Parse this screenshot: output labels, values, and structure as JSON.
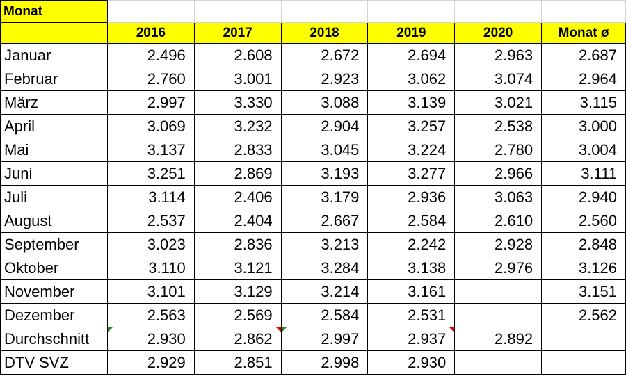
{
  "title_cell": "Monat",
  "headers": [
    "2016",
    "2017",
    "2018",
    "2019",
    "2020",
    "Monat ø"
  ],
  "rows": [
    {
      "label": "Januar",
      "values": [
        "2.496",
        "2.608",
        "2.672",
        "2.694",
        "2.963",
        "2.687"
      ]
    },
    {
      "label": "Februar",
      "values": [
        "2.760",
        "3.001",
        "2.923",
        "3.062",
        "3.074",
        "2.964"
      ]
    },
    {
      "label": "März",
      "values": [
        "2.997",
        "3.330",
        "3.088",
        "3.139",
        "3.021",
        "3.115"
      ]
    },
    {
      "label": "April",
      "values": [
        "3.069",
        "3.232",
        "2.904",
        "3.257",
        "2.538",
        "3.000"
      ]
    },
    {
      "label": "Mai",
      "values": [
        "3.137",
        "2.833",
        "3.045",
        "3.224",
        "2.780",
        "3.004"
      ]
    },
    {
      "label": "Juni",
      "values": [
        "3.251",
        "2.869",
        "3.193",
        "3.277",
        "2.966",
        "3.111"
      ]
    },
    {
      "label": "Juli",
      "values": [
        "3.114",
        "2.406",
        "3.179",
        "2.936",
        "3.063",
        "2.940"
      ]
    },
    {
      "label": "August",
      "values": [
        "2.537",
        "2.404",
        "2.667",
        "2.584",
        "2.610",
        "2.560"
      ]
    },
    {
      "label": "September",
      "values": [
        "3.023",
        "2.836",
        "3.213",
        "2.242",
        "2.928",
        "2.848"
      ]
    },
    {
      "label": "Oktober",
      "values": [
        "3.110",
        "3.121",
        "3.284",
        "3.138",
        "2.976",
        "3.126"
      ]
    },
    {
      "label": "November",
      "values": [
        "3.101",
        "3.129",
        "3.214",
        "3.161",
        "",
        "3.151"
      ]
    },
    {
      "label": "Dezember",
      "values": [
        "2.563",
        "2.569",
        "2.584",
        "2.531",
        "",
        "2.562"
      ]
    }
  ],
  "average_row": {
    "label": "Durchschnitt",
    "values": [
      "2.930",
      "2.862",
      "2.997",
      "2.937",
      "2.892",
      ""
    ]
  },
  "dtv_row": {
    "label": "DTV SVZ",
    "values": [
      "2.929",
      "2.851",
      "2.998",
      "2.930",
      "",
      ""
    ]
  },
  "colors": {
    "header_fill": "#ffff00",
    "comment_marker": "#e00000",
    "error_marker": "#1e8c1e"
  }
}
